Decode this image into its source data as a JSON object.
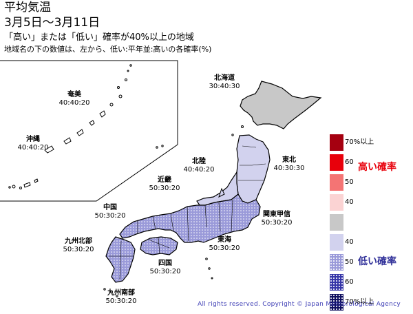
{
  "header": {
    "title": "平均気温",
    "period": "3月5日～3月11日",
    "subtitle": "「高い」または「低い」確率が40%以上の地域",
    "note": "地域名の下の数値は、左から、低い:平年並:高いの各確率(%)"
  },
  "regions": [
    {
      "name": "北海道",
      "values": "30:40:30"
    },
    {
      "name": "奄美",
      "values": "40:40:20"
    },
    {
      "name": "沖縄",
      "values": "40:40:20"
    },
    {
      "name": "北陸",
      "values": "40:40:20"
    },
    {
      "name": "東北",
      "values": "40:30:30"
    },
    {
      "name": "近畿",
      "values": "50:30:20"
    },
    {
      "name": "中国",
      "values": "50:30:20"
    },
    {
      "name": "関東甲信",
      "values": "50:30:20"
    },
    {
      "name": "九州北部",
      "values": "50:30:20"
    },
    {
      "name": "東海",
      "values": "50:30:20"
    },
    {
      "name": "四国",
      "values": "50:30:20"
    },
    {
      "name": "九州南部",
      "values": "50:30:20"
    }
  ],
  "legend": {
    "high_label": "高い確率",
    "low_label": "低い確率",
    "items": [
      {
        "label": "70%以上",
        "color": "#a50010",
        "stipple": false
      },
      {
        "label": "60",
        "color": "#e8000b",
        "stipple": false
      },
      {
        "label": "50",
        "color": "#f47474",
        "stipple": false
      },
      {
        "label": "40",
        "color": "#fbd3d3",
        "stipple": false
      },
      {
        "label": "",
        "color": "#c8c8c8",
        "stipple": false
      },
      {
        "label": "40",
        "color": "#d2d2ee",
        "stipple": false
      },
      {
        "label": "50",
        "color": "#9a9ad9",
        "stipple": true
      },
      {
        "label": "60",
        "color": "#3636a8",
        "stipple": true
      },
      {
        "label": "70%以上",
        "color": "#101060",
        "stipple": true
      }
    ]
  },
  "colors": {
    "hokkaido": "#c8c8c8",
    "light_blue": "#d2d2ee",
    "medium_blue": "#9a9ad9",
    "outline": "#000000"
  },
  "copyright": "All rights reserved. Copyright © Japan Meteorological Agency"
}
